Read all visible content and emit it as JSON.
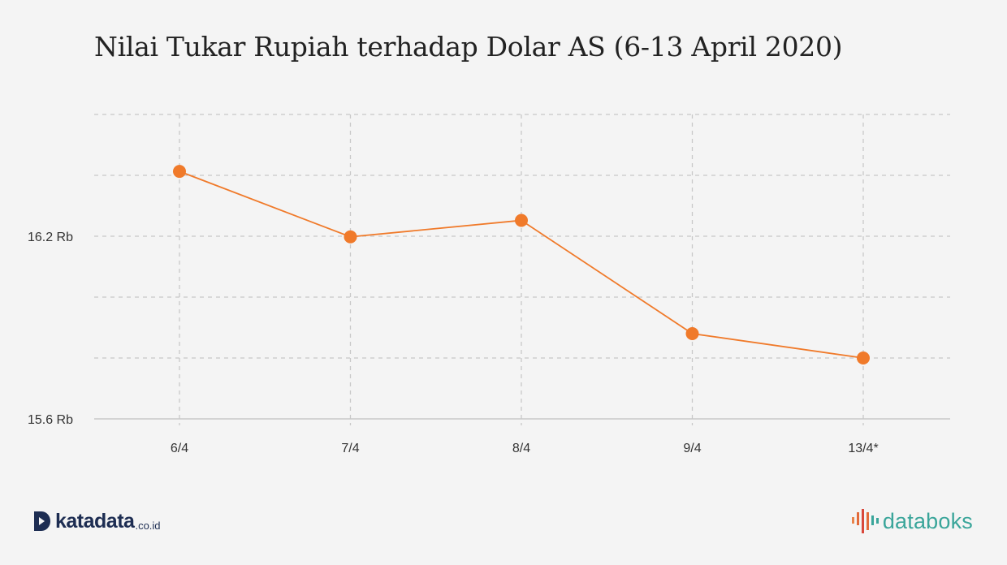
{
  "title": "Nilai Tukar Rupiah terhadap Dolar AS (6-13 April 2020)",
  "chart_data": {
    "type": "line",
    "title": "Nilai Tukar Rupiah terhadap Dolar AS (6-13 April 2020)",
    "categories": [
      "6/4",
      "7/4",
      "8/4",
      "9/4",
      "13/4*"
    ],
    "series": [
      {
        "values": [
          16413,
          16198,
          16252,
          15880,
          15800
        ]
      }
    ],
    "y_ticks": [
      {
        "value": 15600,
        "label": "15.6 Rb"
      },
      {
        "value": 16200,
        "label": "16.2 Rb"
      }
    ],
    "ylim": [
      15600,
      16600
    ],
    "gridlines_y": [
      15800,
      16000,
      16200,
      16400,
      16600
    ],
    "grid": true,
    "line_color": "#f07a2a",
    "grid_color": "#c8c8c8"
  },
  "footer": {
    "left_brand": "katadata",
    "left_domain": ".co.id",
    "right_brand": "databoks"
  }
}
